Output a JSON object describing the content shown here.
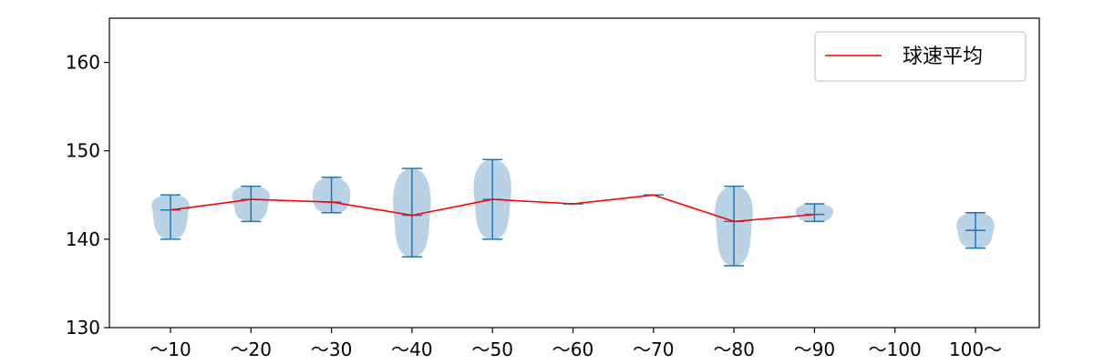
{
  "chart_data": {
    "type": "violin",
    "x_tick_labels": [
      "～10",
      "～20",
      "～30",
      "～40",
      "～50",
      "～60",
      "～70",
      "～80",
      "～90",
      "～100",
      "100～"
    ],
    "y_ticks": [
      130,
      140,
      150,
      160
    ],
    "ylim": [
      130,
      165
    ],
    "grid": false,
    "legend": {
      "position": "top-right",
      "entries": [
        "球速平均"
      ]
    },
    "series": [
      {
        "name": "球速平均",
        "type": "line",
        "color": "#ff0000",
        "values": [
          143.3,
          144.5,
          144.2,
          142.7,
          144.5,
          144.0,
          145.0,
          142.0,
          142.8,
          null,
          null
        ]
      }
    ],
    "violins": [
      {
        "category": "～10",
        "min": 140,
        "max": 145,
        "median": 143.3
      },
      {
        "category": "～20",
        "min": 142,
        "max": 146,
        "median": 144.5
      },
      {
        "category": "～30",
        "min": 143,
        "max": 147,
        "median": 144.2
      },
      {
        "category": "～40",
        "min": 138,
        "max": 148,
        "median": 142.7
      },
      {
        "category": "～50",
        "min": 140,
        "max": 149,
        "median": 144.5
      },
      {
        "category": "～60",
        "min": 144,
        "max": 144,
        "median": 144.0
      },
      {
        "category": "～70",
        "min": 145,
        "max": 145,
        "median": 145.0
      },
      {
        "category": "～80",
        "min": 137,
        "max": 146,
        "median": 142.0
      },
      {
        "category": "～90",
        "min": 142,
        "max": 144,
        "median": 142.8
      },
      {
        "category": "～100",
        "min": null,
        "max": null,
        "median": null
      },
      {
        "category": "100～",
        "min": 139,
        "max": 143,
        "median": 141.0
      }
    ],
    "colors": {
      "violin_fill": "#b3cde3",
      "violin_line": "#1f77b4",
      "mean_line": "#ff0000",
      "axis": "#000000"
    }
  }
}
